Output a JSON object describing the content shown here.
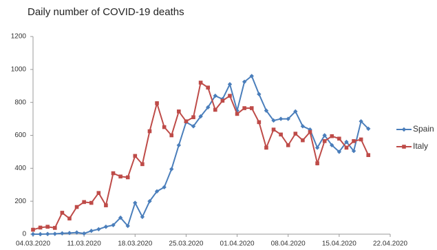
{
  "chart_data": {
    "type": "line",
    "title": "Daily number of COVID-19 deaths",
    "x": [
      "04.03.2020",
      "05.03.2020",
      "06.03.2020",
      "07.03.2020",
      "08.03.2020",
      "09.03.2020",
      "10.03.2020",
      "11.03.2020",
      "12.03.2020",
      "13.03.2020",
      "14.03.2020",
      "15.03.2020",
      "16.03.2020",
      "17.03.2020",
      "18.03.2020",
      "19.03.2020",
      "20.03.2020",
      "21.03.2020",
      "22.03.2020",
      "23.03.2020",
      "24.03.2020",
      "25.03.2020",
      "26.03.2020",
      "27.03.2020",
      "28.03.2020",
      "29.03.2020",
      "30.03.2020",
      "31.03.2020",
      "01.04.2020",
      "02.04.2020",
      "03.04.2020",
      "04.04.2020",
      "05.04.2020",
      "06.04.2020",
      "07.04.2020",
      "08.04.2020",
      "09.04.2020",
      "10.04.2020",
      "11.04.2020",
      "12.04.2020",
      "13.04.2020",
      "14.04.2020",
      "15.04.2020",
      "16.04.2020",
      "17.04.2020",
      "18.04.2020",
      "19.04.2020"
    ],
    "series": [
      {
        "name": "Spain",
        "color": "#4a7ebb",
        "marker": "diamond",
        "values": [
          0,
          0,
          1,
          2,
          5,
          7,
          10,
          4,
          20,
          30,
          45,
          55,
          100,
          50,
          190,
          105,
          200,
          260,
          285,
          395,
          540,
          680,
          655,
          715,
          770,
          840,
          820,
          910,
          750,
          925,
          960,
          850,
          750,
          690,
          700,
          700,
          745,
          655,
          635,
          525,
          600,
          540,
          500,
          560,
          505,
          685,
          640
        ]
      },
      {
        "name": "Italy",
        "color": "#be4b48",
        "marker": "square",
        "values": [
          27,
          40,
          45,
          38,
          130,
          95,
          165,
          195,
          190,
          250,
          175,
          370,
          350,
          345,
          475,
          425,
          625,
          795,
          650,
          600,
          745,
          685,
          710,
          920,
          890,
          755,
          810,
          840,
          730,
          765,
          765,
          680,
          525,
          635,
          605,
          540,
          610,
          570,
          620,
          430,
          565,
          595,
          580,
          525,
          565,
          575,
          480
        ]
      }
    ],
    "xlim": [
      "04.03.2020",
      "22.04.2020"
    ],
    "xticks": [
      "04.03.2020",
      "11.03.2020",
      "18.03.2020",
      "25.03.2020",
      "01.04.2020",
      "08.04.2020",
      "15.04.2020",
      "22.04.2020"
    ],
    "ylim": [
      0,
      1200
    ],
    "yticks": [
      0,
      200,
      400,
      600,
      800,
      1000,
      1200
    ],
    "grid": false,
    "legend": "right"
  }
}
